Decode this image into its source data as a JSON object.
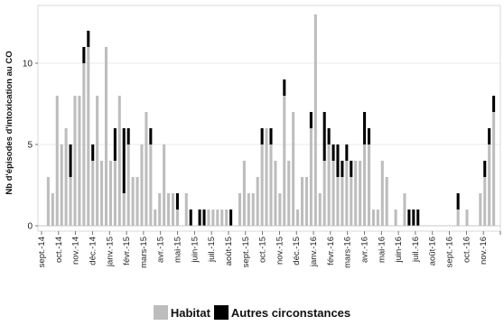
{
  "chart_data": {
    "type": "bar",
    "stacked": true,
    "title": "",
    "xlabel": "",
    "ylabel": "Nb d'épisodes d'intoxication au CO",
    "ylim": [
      0,
      13.5
    ],
    "yticks": [
      0,
      5,
      10
    ],
    "grid": true,
    "legend_position": "bottom",
    "month_labels": [
      "sept.-14",
      "oct.-14",
      "nov.-14",
      "déc.-14",
      "janv.-15",
      "févr.-15",
      "mars-15",
      "avr.-15",
      "mai-15",
      "juin-15",
      "juil.-15",
      "août-15",
      "sept.-15",
      "oct.-15",
      "nov.-15",
      "déc.-15",
      "janv.-16",
      "févr.-16",
      "mars-16",
      "avr.-16",
      "mai-16",
      "juin-16",
      "juil.-16",
      "août-16",
      "sept.-16",
      "oct.-16",
      "nov.-16"
    ],
    "series": [
      {
        "name": "Habitat",
        "color": "#bdbdbd",
        "values": [
          0,
          3,
          2,
          8,
          5,
          6,
          3,
          8,
          8,
          10,
          11,
          4,
          8,
          4,
          11,
          4,
          4,
          8,
          2,
          5,
          3,
          3,
          5,
          7,
          5,
          1,
          2,
          5,
          2,
          2,
          1,
          0,
          2,
          0,
          0,
          0,
          0,
          1,
          1,
          1,
          1,
          1,
          0,
          0,
          2,
          4,
          2,
          2,
          3,
          5,
          6,
          5,
          4,
          2,
          8,
          4,
          7,
          1,
          3,
          3,
          6,
          13,
          2,
          4,
          5,
          4,
          3,
          3,
          4,
          3,
          4,
          4,
          5,
          5,
          1,
          1,
          4,
          3,
          0,
          1,
          0,
          2,
          0,
          0,
          0,
          0,
          0,
          0,
          0,
          0,
          0,
          0,
          0,
          1,
          0,
          1,
          0,
          0,
          2,
          3,
          5,
          7,
          0
        ]
      },
      {
        "name": "Autres circonstances",
        "color": "#000000",
        "values": [
          0,
          0,
          0,
          0,
          0,
          0,
          2,
          0,
          0,
          1,
          1,
          1,
          0,
          0,
          0,
          0,
          2,
          0,
          4,
          1,
          0,
          0,
          0,
          0,
          1,
          0,
          0,
          0,
          0,
          0,
          1,
          0,
          0,
          1,
          0,
          1,
          1,
          0,
          0,
          0,
          0,
          0,
          1,
          0,
          0,
          0,
          0,
          0,
          0,
          1,
          0,
          1,
          0,
          0,
          1,
          0,
          0,
          0,
          0,
          0,
          1,
          0,
          0,
          3,
          1,
          1,
          2,
          1,
          1,
          1,
          0,
          0,
          2,
          1,
          0,
          0,
          0,
          0,
          0,
          0,
          0,
          0,
          1,
          1,
          1,
          0,
          0,
          0,
          0,
          0,
          0,
          0,
          0,
          1,
          0,
          0,
          0,
          0,
          0,
          1,
          1,
          1,
          0
        ]
      }
    ]
  },
  "legend": {
    "habitat": "Habitat",
    "autres": "Autres circonstances"
  }
}
